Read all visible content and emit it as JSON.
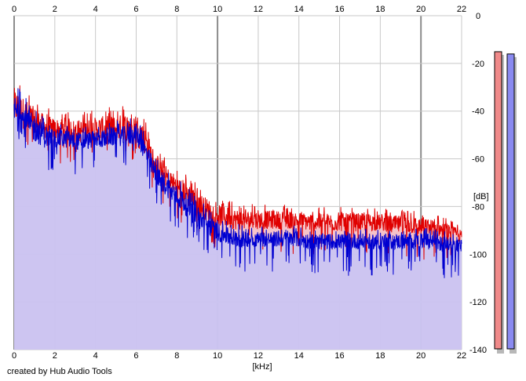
{
  "credit": "created by Hub Audio Tools",
  "colors": {
    "background": "#ffffff",
    "grid": "#c8c8c8",
    "grid_major": "#8c8c8c",
    "left_channel_line": "#e00000",
    "left_channel_fill": "#f5b8c0",
    "right_channel_line": "#0000d0",
    "right_channel_fill": "#c6c6f8",
    "left_meter": "#f08a8a",
    "right_meter": "#8a8af0"
  },
  "chart_data": {
    "type": "area",
    "xlabel": "[kHz]",
    "ylabel": "[dB]",
    "xlim": [
      0,
      22
    ],
    "ylim": [
      -140,
      0
    ],
    "x_ticks": [
      "0",
      "2",
      "4",
      "6",
      "8",
      "10",
      "12",
      "14",
      "16",
      "18",
      "20",
      "22"
    ],
    "y_ticks": [
      "0",
      "-20",
      "-40",
      "-60",
      "-80",
      "-100",
      "-120",
      "-140"
    ],
    "grid": true,
    "x_ticks_top_and_bottom": true,
    "y_ticks_side": "right",
    "envelope_step_khz": 0.5,
    "series": [
      {
        "color": "#e00000",
        "peak_db": [
          -25,
          -30,
          -34,
          -38,
          -40,
          -39,
          -40,
          -40,
          -39,
          -38,
          -38,
          -37,
          -36,
          -44,
          -56,
          -60,
          -64,
          -66,
          -70,
          -73,
          -76,
          -77,
          -78,
          -79,
          -79,
          -79,
          -79,
          -79,
          -80,
          -80,
          -80,
          -80,
          -80,
          -80,
          -80,
          -80,
          -81,
          -81,
          -81,
          -81,
          -82,
          -83,
          -84,
          -86,
          -88
        ],
        "mean_db": [
          -38,
          -42,
          -45,
          -47,
          -48,
          -48,
          -49,
          -49,
          -48,
          -48,
          -48,
          -47,
          -47,
          -54,
          -64,
          -68,
          -72,
          -75,
          -79,
          -82,
          -84,
          -85,
          -86,
          -86,
          -86,
          -86,
          -86,
          -86,
          -86,
          -87,
          -87,
          -87,
          -87,
          -87,
          -87,
          -87,
          -87,
          -88,
          -88,
          -88,
          -89,
          -89,
          -90,
          -91,
          -93
        ]
      },
      {
        "color": "#0000d0",
        "peak_db": [
          -28,
          -33,
          -38,
          -42,
          -45,
          -45,
          -46,
          -46,
          -46,
          -45,
          -44,
          -43,
          -42,
          -50,
          -60,
          -64,
          -68,
          -71,
          -76,
          -80,
          -84,
          -86,
          -87,
          -88,
          -88,
          -88,
          -88,
          -88,
          -88,
          -89,
          -89,
          -89,
          -89,
          -89,
          -89,
          -89,
          -89,
          -89,
          -89,
          -89,
          -89,
          -89,
          -90,
          -91,
          -92
        ],
        "mean_db": [
          -40,
          -45,
          -48,
          -51,
          -52,
          -52,
          -53,
          -53,
          -52,
          -52,
          -51,
          -51,
          -50,
          -58,
          -68,
          -72,
          -76,
          -80,
          -85,
          -88,
          -91,
          -93,
          -94,
          -94,
          -94,
          -94,
          -94,
          -94,
          -94,
          -95,
          -95,
          -95,
          -95,
          -95,
          -95,
          -95,
          -95,
          -95,
          -95,
          -95,
          -95,
          -95,
          -96,
          -96,
          -97
        ]
      }
    ],
    "level_meters": [
      {
        "channel": "left",
        "color": "#f08a8a",
        "level_db": -8
      },
      {
        "channel": "right",
        "color": "#8a8af0",
        "level_db": -9
      }
    ]
  }
}
